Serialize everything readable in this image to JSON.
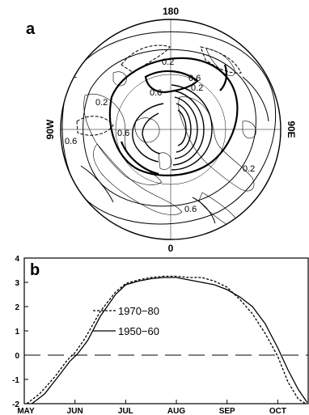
{
  "panel_a": {
    "letter": "a",
    "lon_labels": {
      "top": "180",
      "bottom": "0",
      "left": "90W",
      "right": "90E"
    },
    "contour_labels": [
      "0.2",
      "0.2",
      "0.2",
      "0.6",
      "0.6",
      "0.2",
      "0.6",
      "0.2",
      "0.6",
      "0.6"
    ]
  },
  "chart_data": {
    "type": "line",
    "panel_letter": "b",
    "title": "",
    "xlabel": "",
    "ylabel": "",
    "x_ticks": [
      "MAY",
      "JUN",
      "JUL",
      "AUG",
      "SEP",
      "OCT"
    ],
    "x_tick_pos": [
      0,
      1,
      2,
      3,
      4,
      5
    ],
    "xlim": [
      0,
      5.6
    ],
    "ylim": [
      -2,
      4
    ],
    "y_ticks": [
      -2,
      -1,
      0,
      1,
      2,
      3,
      4
    ],
    "grid": false,
    "legend": "upper-left",
    "series": [
      {
        "name": "1970−80",
        "style": "dashed",
        "x": [
          0.05,
          0.3,
          0.6,
          0.85,
          1.0,
          1.2,
          1.5,
          1.8,
          2.0,
          2.25,
          2.5,
          2.75,
          3.0,
          3.25,
          3.5,
          3.75,
          4.0,
          4.25,
          4.5,
          4.75,
          5.0,
          5.2,
          5.4,
          5.55
        ],
        "y": [
          -2.0,
          -1.6,
          -0.9,
          -0.2,
          0.1,
          0.7,
          1.8,
          2.6,
          2.95,
          3.1,
          3.2,
          3.25,
          3.25,
          3.2,
          3.2,
          3.05,
          2.8,
          2.3,
          1.7,
          0.9,
          -0.05,
          -1.1,
          -1.8,
          -2.0
        ]
      },
      {
        "name": "1950−60",
        "style": "solid",
        "x": [
          0.15,
          0.4,
          0.7,
          0.9,
          1.05,
          1.25,
          1.5,
          1.8,
          2.0,
          2.25,
          2.5,
          2.75,
          3.0,
          3.25,
          3.5,
          3.75,
          4.0,
          4.25,
          4.5,
          4.75,
          5.0,
          5.2,
          5.4,
          5.58
        ],
        "y": [
          -2.0,
          -1.6,
          -0.8,
          -0.25,
          0.05,
          0.6,
          1.6,
          2.5,
          2.9,
          3.05,
          3.15,
          3.2,
          3.2,
          3.1,
          3.0,
          2.9,
          2.7,
          2.4,
          2.0,
          1.3,
          0.3,
          -0.6,
          -1.4,
          -1.95
        ]
      }
    ]
  }
}
